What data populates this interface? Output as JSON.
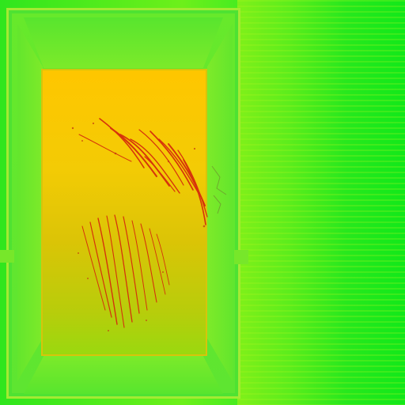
{
  "colors": {
    "background_green": "#22ea1e",
    "rim_green": "#67e92b",
    "panel_top_yellow": "#ffc600",
    "panel_bottom_green": "#99d90f",
    "stain_red": "#d52b0c"
  },
  "icons": {
    "frame": "door-frame-texture",
    "stain": "scratch-stain"
  }
}
